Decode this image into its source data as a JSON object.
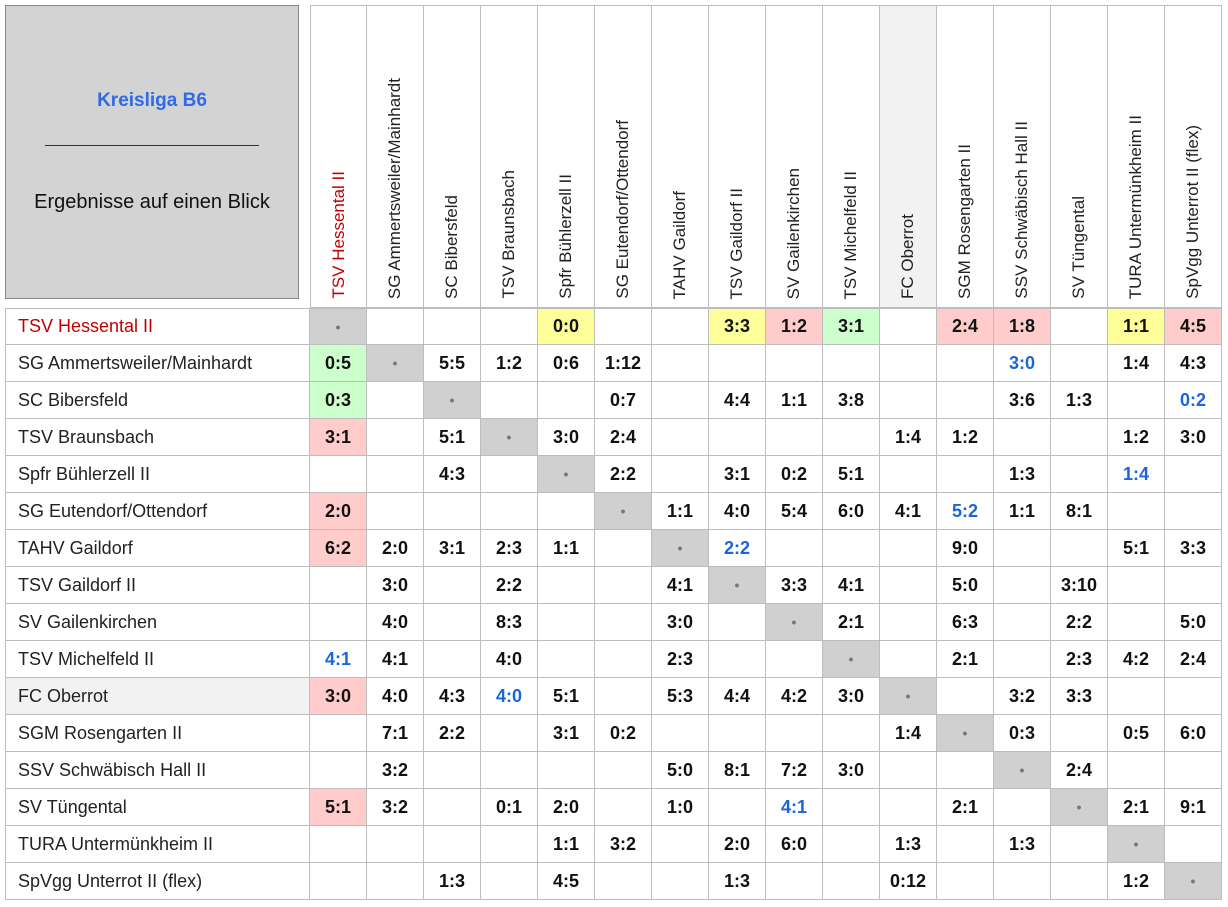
{
  "header": {
    "title": "Kreisliga B6",
    "separator": "________________________",
    "subtitle": "Ergebnisse auf einen Blick"
  },
  "highlight_team": {
    "index": 0,
    "color": "#c00000"
  },
  "shaded_team": {
    "index": 10,
    "color": "#f2f2f2"
  },
  "teams": [
    "TSV Hessental II",
    "SG Ammertsweiler/Mainhardt",
    "SC Bibersfeld",
    "TSV Braunsbach",
    "Spfr Bühlerzell II",
    "SG Eutendorf/Ottendorf",
    "TAHV Gaildorf",
    "TSV Gaildorf II",
    "SV Gailenkirchen",
    "TSV Michelfeld II",
    "FC Oberrot",
    "SGM Rosengarten II",
    "SSV Schwäbisch Hall II",
    "SV Tüngental",
    "TURA Untermünkheim II",
    "SpVgg Unterrot II (flex)"
  ],
  "table": {
    "rows": [
      [
        "•",
        null,
        null,
        null,
        {
          "text": "0:0",
          "bg": "#ffff99"
        },
        null,
        null,
        {
          "text": "3:3",
          "bg": "#ffff99"
        },
        {
          "text": "1:2",
          "bg": "#ffcccc"
        },
        {
          "text": "3:1",
          "bg": "#ccffcc"
        },
        null,
        {
          "text": "2:4",
          "bg": "#ffcccc"
        },
        {
          "text": "1:8",
          "bg": "#ffcccc"
        },
        null,
        {
          "text": "1:1",
          "bg": "#ffff99"
        },
        {
          "text": "4:5",
          "bg": "#ffcccc"
        }
      ],
      [
        {
          "text": "0:5",
          "bg": "#ccffcc"
        },
        "•",
        "5:5",
        "1:2",
        "0:6",
        "1:12",
        null,
        null,
        null,
        null,
        null,
        null,
        {
          "text": "3:0",
          "color": "#1a66d9"
        },
        null,
        "1:4",
        "4:3"
      ],
      [
        {
          "text": "0:3",
          "bg": "#ccffcc"
        },
        null,
        "•",
        null,
        null,
        "0:7",
        null,
        "4:4",
        "1:1",
        "3:8",
        null,
        null,
        "3:6",
        "1:3",
        null,
        {
          "text": "0:2",
          "color": "#1a66d9"
        }
      ],
      [
        {
          "text": "3:1",
          "bg": "#ffcccc"
        },
        null,
        "5:1",
        "•",
        "3:0",
        "2:4",
        null,
        null,
        null,
        null,
        "1:4",
        "1:2",
        null,
        null,
        "1:2",
        "3:0"
      ],
      [
        null,
        null,
        "4:3",
        null,
        "•",
        "2:2",
        null,
        "3:1",
        "0:2",
        "5:1",
        null,
        null,
        "1:3",
        null,
        {
          "text": "1:4",
          "color": "#1a66d9"
        },
        null
      ],
      [
        {
          "text": "2:0",
          "bg": "#ffcccc"
        },
        null,
        null,
        null,
        null,
        "•",
        "1:1",
        "4:0",
        "5:4",
        "6:0",
        "4:1",
        {
          "text": "5:2",
          "color": "#1a66d9"
        },
        "1:1",
        "8:1",
        null,
        null
      ],
      [
        {
          "text": "6:2",
          "bg": "#ffcccc"
        },
        "2:0",
        "3:1",
        "2:3",
        "1:1",
        null,
        "•",
        {
          "text": "2:2",
          "color": "#1a66d9"
        },
        null,
        null,
        null,
        "9:0",
        null,
        null,
        "5:1",
        "3:3"
      ],
      [
        null,
        "3:0",
        null,
        "2:2",
        null,
        null,
        "4:1",
        "•",
        "3:3",
        "4:1",
        null,
        "5:0",
        null,
        "3:10",
        null,
        null
      ],
      [
        null,
        "4:0",
        null,
        "8:3",
        null,
        null,
        "3:0",
        null,
        "•",
        "2:1",
        null,
        "6:3",
        null,
        "2:2",
        null,
        "5:0"
      ],
      [
        {
          "text": "4:1",
          "color": "#1a66d9"
        },
        "4:1",
        null,
        "4:0",
        null,
        null,
        "2:3",
        null,
        null,
        "•",
        null,
        "2:1",
        null,
        "2:3",
        "4:2",
        "2:4"
      ],
      [
        {
          "text": "3:0",
          "bg": "#ffcccc"
        },
        "4:0",
        "4:3",
        {
          "text": "4:0",
          "color": "#1a66d9"
        },
        "5:1",
        null,
        "5:3",
        "4:4",
        "4:2",
        "3:0",
        "•",
        null,
        "3:2",
        "3:3",
        null,
        null
      ],
      [
        null,
        "7:1",
        "2:2",
        null,
        "3:1",
        "0:2",
        null,
        null,
        null,
        null,
        "1:4",
        "•",
        "0:3",
        null,
        "0:5",
        "6:0"
      ],
      [
        null,
        "3:2",
        null,
        null,
        null,
        null,
        "5:0",
        "8:1",
        "7:2",
        "3:0",
        null,
        null,
        "•",
        "2:4",
        null,
        null
      ],
      [
        {
          "text": "5:1",
          "bg": "#ffcccc"
        },
        "3:2",
        null,
        "0:1",
        "2:0",
        null,
        "1:0",
        null,
        {
          "text": "4:1",
          "color": "#1a66d9"
        },
        null,
        null,
        "2:1",
        null,
        "•",
        "2:1",
        "9:1"
      ],
      [
        null,
        null,
        null,
        null,
        "1:1",
        "3:2",
        null,
        "2:0",
        "6:0",
        null,
        "1:3",
        null,
        "1:3",
        null,
        "•",
        null
      ],
      [
        null,
        null,
        "1:3",
        null,
        "4:5",
        null,
        null,
        "1:3",
        null,
        null,
        "0:12",
        null,
        null,
        null,
        "1:2",
        "•"
      ]
    ]
  }
}
